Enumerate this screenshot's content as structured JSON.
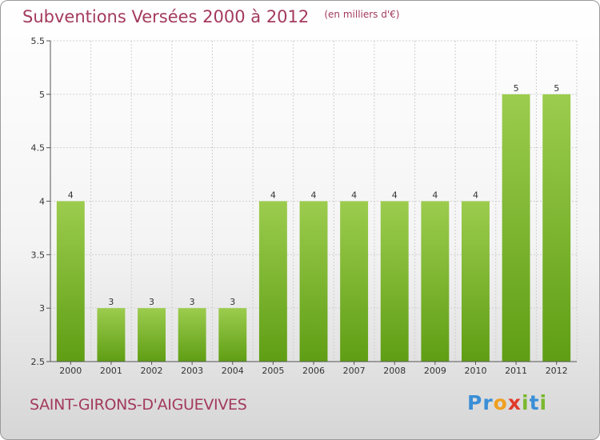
{
  "title": "Subventions Versées 2000 à 2012",
  "subtitle": "(en milliers d'€)",
  "commune": "SAINT-GIRONS-D'AIGUEVIVES",
  "logo": {
    "text": "Proxiti",
    "letters": [
      {
        "ch": "P",
        "color": "#3a8fd6"
      },
      {
        "ch": "r",
        "color": "#3a8fd6"
      },
      {
        "ch": "o",
        "color": "#f0a020"
      },
      {
        "ch": "x",
        "color": "#e03c2c"
      },
      {
        "ch": "i",
        "color": "#7ab82e"
      },
      {
        "ch": "t",
        "color": "#3a8fd6"
      },
      {
        "ch": "i",
        "color": "#7ab82e"
      }
    ]
  },
  "colors": {
    "title": "#a33a5c",
    "bar_top": "#9ccc4e",
    "bar_bottom": "#5f9e14",
    "grid": "#cfcfcf"
  },
  "chart_data": {
    "type": "bar",
    "categories": [
      "2000",
      "2001",
      "2002",
      "2003",
      "2004",
      "2005",
      "2006",
      "2007",
      "2008",
      "2009",
      "2010",
      "2011",
      "2012"
    ],
    "values": [
      4,
      3,
      3,
      3,
      3,
      4,
      4,
      4,
      4,
      4,
      4,
      5,
      5
    ],
    "labels": [
      "4",
      "3",
      "3",
      "3",
      "3",
      "4",
      "4",
      "4",
      "4",
      "4",
      "4",
      "5",
      "5"
    ],
    "ylim": [
      2.5,
      5.5
    ],
    "yticks": [
      2.5,
      3,
      3.5,
      4,
      4.5,
      5,
      5.5
    ],
    "ytick_labels": [
      "2.5",
      "3",
      "3.5",
      "4",
      "4.5",
      "5",
      "5.5"
    ],
    "grid": true
  }
}
